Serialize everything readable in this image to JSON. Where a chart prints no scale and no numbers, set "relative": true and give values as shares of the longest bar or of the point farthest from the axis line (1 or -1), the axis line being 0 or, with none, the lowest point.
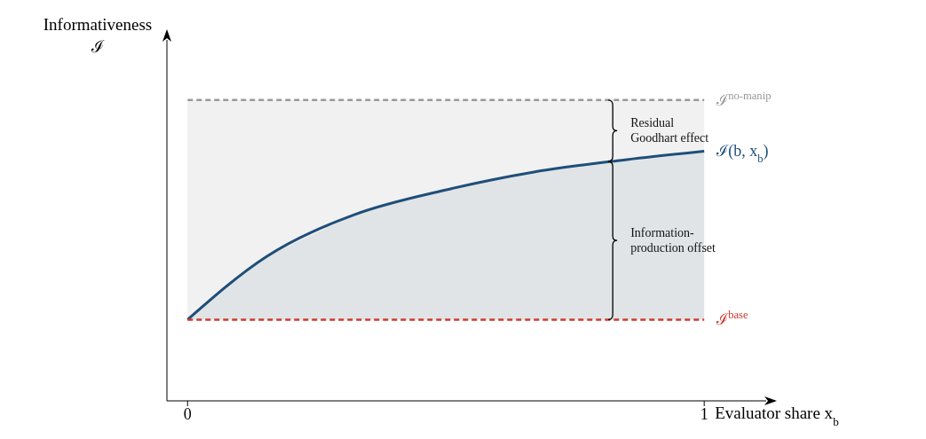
{
  "chart_data": {
    "type": "line",
    "relative": true,
    "xlabel": "Evaluator share x$_{b}$",
    "ylabel": "Informativeness\nℐ",
    "xlim": [
      -0.04,
      1.12
    ],
    "xticks": [
      0,
      1
    ],
    "grid": false,
    "legend": false,
    "marker": "none",
    "line_style": "solid",
    "series": [
      {
        "name": "ℐ$^{no-manip}$",
        "color": "#999999",
        "line_style": "dashed",
        "x": [
          0,
          1
        ],
        "values": [
          1,
          1
        ],
        "lower": [
          0.27,
          0.27
        ],
        "upper": [
          1,
          1
        ]
      },
      {
        "name": "ℐ(b, x$_{b}$)",
        "color": "#1f4e79",
        "x": [
          0,
          0.153,
          0.325,
          0.497,
          0.668,
          0.84,
          1
        ],
        "values": [
          0.27,
          0.48,
          0.62,
          0.7,
          0.76,
          0.8,
          0.83
        ],
        "lower": [
          0.27,
          0.27,
          0.27,
          0.27,
          0.27,
          0.27,
          0.27
        ],
        "upper": [
          0.27,
          0.48,
          0.62,
          0.7,
          0.76,
          0.8,
          0.83
        ]
      },
      {
        "name": "ℐ$^{base}$",
        "color": "#d0392b",
        "line_style": "dashed",
        "x": [
          0,
          1
        ],
        "values": [
          0.27,
          0.27
        ]
      }
    ],
    "annotations": [
      "Residual Goodhart effect",
      "Information-production offset"
    ]
  }
}
